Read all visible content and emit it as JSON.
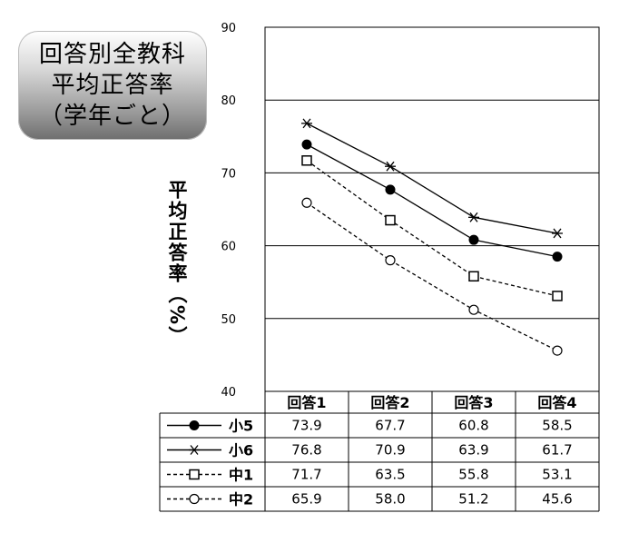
{
  "title_lines": [
    "回答別全教科",
    "平均正答率",
    "（学年ごと）"
  ],
  "chart_data": {
    "type": "line",
    "ylabel": "平均正答率（%）",
    "ylim": [
      40,
      90
    ],
    "yticks": [
      "40",
      "50",
      "60",
      "70",
      "80",
      "90"
    ],
    "grid": true,
    "categories": [
      "回答1",
      "回答2",
      "回答3",
      "回答4"
    ],
    "series": [
      {
        "name": "小5",
        "values": [
          73.9,
          67.7,
          60.8,
          58.5
        ],
        "display": [
          "73.9",
          "67.7",
          "60.8",
          "58.5"
        ],
        "marker": "filled-circle",
        "dash": "solid"
      },
      {
        "name": "小6",
        "values": [
          76.8,
          70.9,
          63.9,
          61.7
        ],
        "display": [
          "76.8",
          "70.9",
          "63.9",
          "61.7"
        ],
        "marker": "asterisk",
        "dash": "solid"
      },
      {
        "name": "中1",
        "values": [
          71.7,
          63.5,
          55.8,
          53.1
        ],
        "display": [
          "71.7",
          "63.5",
          "55.8",
          "53.1"
        ],
        "marker": "open-square",
        "dash": "dashed"
      },
      {
        "name": "中2",
        "values": [
          65.9,
          58.0,
          51.2,
          45.6
        ],
        "display": [
          "65.9",
          "58.0",
          "51.2",
          "45.6"
        ],
        "marker": "open-circle",
        "dash": "dashed"
      }
    ]
  }
}
